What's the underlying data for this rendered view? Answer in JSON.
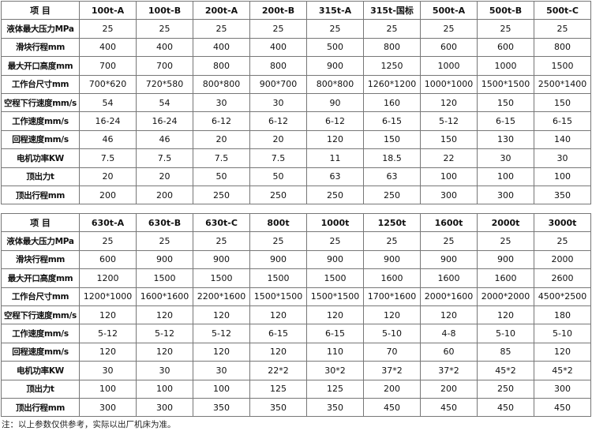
{
  "row_labels": [
    "液体最大压力MPa",
    "滑块行程mm",
    "最大开口高度mm",
    "工作台尺寸mm",
    "空程下行速度mm/s",
    "工作速度mm/s",
    "回程速度mm/s",
    "电机功率KW",
    "顶出力t",
    "顶出行程mm"
  ],
  "tables": [
    {
      "header_label": "项 目",
      "models": [
        "100t-A",
        "100t-B",
        "200t-A",
        "200t-B",
        "315t-A",
        "315t-国标",
        "500t-A",
        "500t-B",
        "500t-C"
      ],
      "rows": [
        [
          "25",
          "25",
          "25",
          "25",
          "25",
          "25",
          "25",
          "25",
          "25"
        ],
        [
          "400",
          "400",
          "400",
          "400",
          "500",
          "800",
          "600",
          "600",
          "800"
        ],
        [
          "700",
          "700",
          "800",
          "800",
          "900",
          "1250",
          "1000",
          "1000",
          "1500"
        ],
        [
          "700*620",
          "720*580",
          "800*800",
          "900*700",
          "800*800",
          "1260*1200",
          "1000*1000",
          "1500*1500",
          "2500*1400"
        ],
        [
          "54",
          "54",
          "30",
          "30",
          "90",
          "160",
          "120",
          "150",
          "150"
        ],
        [
          "16-24",
          "16-24",
          "6-12",
          "6-12",
          "6-12",
          "6-15",
          "5-12",
          "6-15",
          "6-15"
        ],
        [
          "46",
          "46",
          "20",
          "20",
          "120",
          "150",
          "150",
          "130",
          "140"
        ],
        [
          "7.5",
          "7.5",
          "7.5",
          "7.5",
          "11",
          "18.5",
          "22",
          "30",
          "30"
        ],
        [
          "20",
          "20",
          "50",
          "50",
          "63",
          "63",
          "100",
          "100",
          "100"
        ],
        [
          "200",
          "200",
          "250",
          "250",
          "250",
          "250",
          "300",
          "300",
          "350"
        ]
      ]
    },
    {
      "header_label": "项 目",
      "models": [
        "630t-A",
        "630t-B",
        "630t-C",
        "800t",
        "1000t",
        "1250t",
        "1600t",
        "2000t",
        "3000t"
      ],
      "rows": [
        [
          "25",
          "25",
          "25",
          "25",
          "25",
          "25",
          "25",
          "25",
          "25"
        ],
        [
          "600",
          "900",
          "900",
          "900",
          "900",
          "900",
          "900",
          "900",
          "2000"
        ],
        [
          "1200",
          "1500",
          "1500",
          "1500",
          "1500",
          "1600",
          "1600",
          "1600",
          "2600"
        ],
        [
          "1200*1000",
          "1600*1600",
          "2200*1600",
          "1500*1500",
          "1500*1500",
          "1700*1600",
          "2000*1600",
          "2000*2000",
          "4500*2500"
        ],
        [
          "120",
          "120",
          "120",
          "120",
          "120",
          "120",
          "120",
          "120",
          "180"
        ],
        [
          "5-12",
          "5-12",
          "5-12",
          "6-15",
          "6-15",
          "5-10",
          "4-8",
          "5-10",
          "5-10"
        ],
        [
          "120",
          "120",
          "120",
          "120",
          "110",
          "70",
          "60",
          "85",
          "120"
        ],
        [
          "30",
          "30",
          "30",
          "22*2",
          "30*2",
          "37*2",
          "37*2",
          "45*2",
          "45*2"
        ],
        [
          "100",
          "100",
          "100",
          "125",
          "125",
          "200",
          "200",
          "250",
          "300"
        ],
        [
          "300",
          "300",
          "350",
          "350",
          "350",
          "450",
          "450",
          "450",
          "450"
        ]
      ]
    }
  ],
  "note": "注：以上参数仅供参考，实际以出厂机床为准。"
}
